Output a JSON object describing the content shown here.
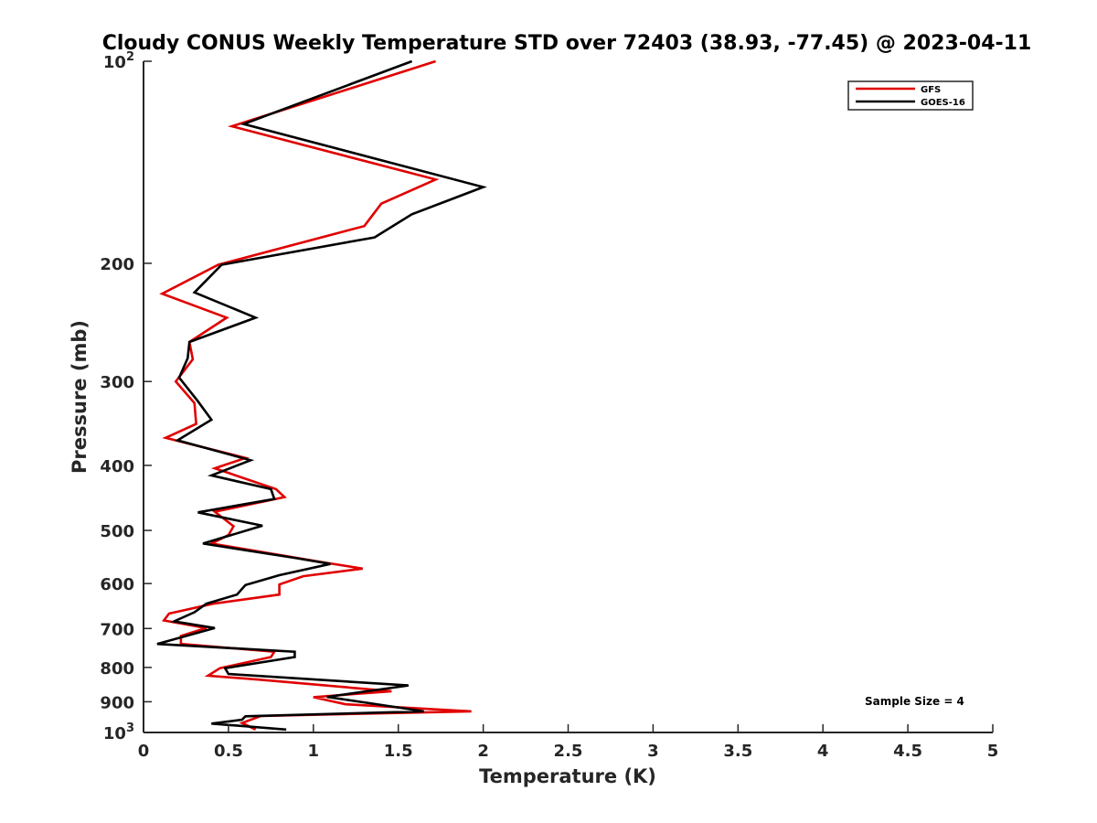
{
  "chart_data": {
    "type": "line",
    "title": "Cloudy CONUS Weekly Temperature STD over 72403 (38.93, -77.45) @ 2023-04-11",
    "xlabel": "Temperature (K)",
    "ylabel": "Pressure (mb)",
    "xlim": [
      0,
      5
    ],
    "ylim": [
      100,
      1000
    ],
    "y_scale": "log",
    "y_reversed": true,
    "x_ticks": [
      {
        "value": 0,
        "label": "0"
      },
      {
        "value": 0.5,
        "label": "0.5"
      },
      {
        "value": 1,
        "label": "1"
      },
      {
        "value": 1.5,
        "label": "1.5"
      },
      {
        "value": 2,
        "label": "2"
      },
      {
        "value": 2.5,
        "label": "2.5"
      },
      {
        "value": 3,
        "label": "3"
      },
      {
        "value": 3.5,
        "label": "3.5"
      },
      {
        "value": 4,
        "label": "4"
      },
      {
        "value": 4.5,
        "label": "4.5"
      },
      {
        "value": 5,
        "label": "5"
      }
    ],
    "y_ticks": [
      {
        "value": 100,
        "base": "10",
        "exp": "2"
      },
      {
        "value": 200,
        "label": "200"
      },
      {
        "value": 300,
        "label": "300"
      },
      {
        "value": 400,
        "label": "400"
      },
      {
        "value": 500,
        "label": "500"
      },
      {
        "value": 600,
        "label": "600"
      },
      {
        "value": 700,
        "label": "700"
      },
      {
        "value": 800,
        "label": "800"
      },
      {
        "value": 900,
        "label": "900"
      },
      {
        "value": 1000,
        "base": "10",
        "exp": "3"
      }
    ],
    "grid": false,
    "legend_position": "top-right",
    "annotation": "Sample Size = 4",
    "series": [
      {
        "name": "GFS",
        "color": "#e00000",
        "points": [
          [
            1.72,
            100
          ],
          [
            0.52,
            125
          ],
          [
            1.72,
            150
          ],
          [
            1.4,
            163
          ],
          [
            1.3,
            176
          ],
          [
            0.44,
            201
          ],
          [
            0.11,
            222
          ],
          [
            0.49,
            241
          ],
          [
            0.27,
            262
          ],
          [
            0.29,
            278
          ],
          [
            0.19,
            300
          ],
          [
            0.3,
            323
          ],
          [
            0.31,
            347
          ],
          [
            0.13,
            364
          ],
          [
            0.6,
            390
          ],
          [
            0.42,
            404
          ],
          [
            0.78,
            434
          ],
          [
            0.83,
            446
          ],
          [
            0.42,
            469
          ],
          [
            0.53,
            493
          ],
          [
            0.5,
            508
          ],
          [
            0.4,
            523
          ],
          [
            1.08,
            559
          ],
          [
            1.29,
            570
          ],
          [
            0.94,
            585
          ],
          [
            0.8,
            602
          ],
          [
            0.8,
            623
          ],
          [
            0.41,
            643
          ],
          [
            0.15,
            665
          ],
          [
            0.12,
            681
          ],
          [
            0.37,
            699
          ],
          [
            0.22,
            718
          ],
          [
            0.22,
            738
          ],
          [
            0.77,
            758
          ],
          [
            0.75,
            772
          ],
          [
            0.45,
            802
          ],
          [
            0.38,
            823
          ],
          [
            0.67,
            834
          ],
          [
            1.46,
            868
          ],
          [
            1.0,
            886
          ],
          [
            1.19,
            908
          ],
          [
            1.93,
            930
          ],
          [
            0.69,
            945
          ],
          [
            0.58,
            968
          ],
          [
            0.66,
            990
          ]
        ]
      },
      {
        "name": "GOES-16",
        "color": "#000000",
        "points": [
          [
            1.58,
            100
          ],
          [
            0.59,
            124
          ],
          [
            2.0,
            154
          ],
          [
            1.58,
            169
          ],
          [
            1.36,
            183
          ],
          [
            0.46,
            201
          ],
          [
            0.3,
            221
          ],
          [
            0.66,
            241
          ],
          [
            0.27,
            262
          ],
          [
            0.26,
            277
          ],
          [
            0.21,
            296
          ],
          [
            0.32,
            321
          ],
          [
            0.4,
            342
          ],
          [
            0.2,
            367
          ],
          [
            0.63,
            393
          ],
          [
            0.4,
            414
          ],
          [
            0.75,
            434
          ],
          [
            0.77,
            449
          ],
          [
            0.32,
            470
          ],
          [
            0.7,
            492
          ],
          [
            0.35,
            523
          ],
          [
            0.9,
            550
          ],
          [
            1.1,
            561
          ],
          [
            0.8,
            583
          ],
          [
            0.6,
            603
          ],
          [
            0.55,
            623
          ],
          [
            0.37,
            643
          ],
          [
            0.3,
            662
          ],
          [
            0.18,
            683
          ],
          [
            0.42,
            699
          ],
          [
            0.08,
            738
          ],
          [
            0.89,
            758
          ],
          [
            0.89,
            772
          ],
          [
            0.48,
            802
          ],
          [
            0.5,
            818
          ],
          [
            1.56,
            851
          ],
          [
            1.08,
            885
          ],
          [
            1.35,
            906
          ],
          [
            1.65,
            930
          ],
          [
            0.6,
            946
          ],
          [
            0.58,
            957
          ],
          [
            0.4,
            970
          ],
          [
            0.84,
            990
          ]
        ]
      }
    ]
  }
}
